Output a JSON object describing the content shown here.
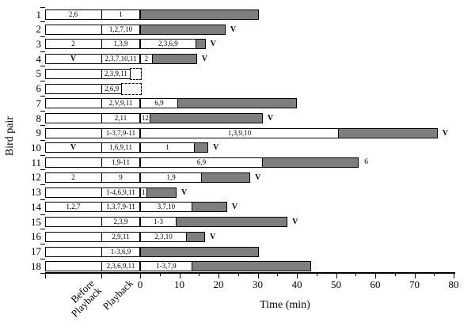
{
  "figure": {
    "y_axis_label": "Bird pair",
    "x_axis_label": "Time (min)",
    "column_headers": {
      "before": "Before\nPlayback",
      "playback": "Playback"
    }
  },
  "colors": {
    "bar_gray": "#7e7e7e",
    "bar_white": "#ffffff",
    "line": "#000000"
  },
  "chart_data": {
    "type": "bar",
    "orientation": "horizontal",
    "xlabel": "Time (min)",
    "ylabel": "Bird pair",
    "x_ticks": [
      0,
      10,
      20,
      30,
      40,
      50,
      60,
      70,
      80
    ],
    "x_tick_labels": [
      "0",
      "10",
      "20",
      "30",
      "40",
      "50",
      "60",
      "70",
      "80"
    ],
    "x_minor_step": 5,
    "xlim": [
      0,
      80
    ],
    "rows": [
      {
        "pair": "1",
        "before": "2,6",
        "playback": "1",
        "playback_end": 0,
        "dashed": false,
        "white_end": 0,
        "white_label": "",
        "gray_end": 30.3,
        "marker": ""
      },
      {
        "pair": "2",
        "before": "",
        "playback": "1,2,7,10",
        "playback_end": 0,
        "dashed": false,
        "white_end": 0,
        "white_label": "",
        "gray_end": 21.8,
        "marker": "V"
      },
      {
        "pair": "3",
        "before": "2",
        "playback": "1,3,9",
        "playback_end": 0,
        "dashed": false,
        "white_end": 14.3,
        "white_label": "2,3,6,9",
        "gray_end": 16.7,
        "marker": "V"
      },
      {
        "pair": "4",
        "before": "V",
        "playback": "2,3,7,10,11",
        "playback_end": 0,
        "dashed": false,
        "white_end": 3.2,
        "white_label": "2",
        "gray_end": 14.5,
        "marker": "V"
      },
      {
        "pair": "5",
        "before": "",
        "playback": "2,3,9,11",
        "playback_end": -2.5,
        "dashed": true,
        "white_end": 0,
        "white_label": "",
        "gray_end": null,
        "marker": ""
      },
      {
        "pair": "6",
        "before": "",
        "playback": "2,6,9",
        "playback_end": -4.6,
        "dashed": true,
        "white_end": 0,
        "white_label": "",
        "gray_end": null,
        "marker": ""
      },
      {
        "pair": "7",
        "before": "",
        "playback": "2,V,9,11",
        "playback_end": 0,
        "dashed": false,
        "white_end": 9.7,
        "white_label": "6,9",
        "gray_end": 40.0,
        "marker": ""
      },
      {
        "pair": "8",
        "before": "",
        "playback": "2,11",
        "playback_end": 0,
        "dashed": false,
        "white_end": 2.6,
        "white_label": "12",
        "gray_end": 31.3,
        "marker": "V"
      },
      {
        "pair": "9",
        "before": "",
        "playback": "1-3,7,9-11",
        "playback_end": 0,
        "dashed": false,
        "white_end": 50.7,
        "white_label": "1,3,9,10",
        "gray_end": 75.9,
        "marker": "V"
      },
      {
        "pair": "10",
        "before": "V",
        "playback": "1,6,9,11",
        "playback_end": 0,
        "dashed": false,
        "white_end": 13.9,
        "white_label": "1",
        "gray_end": 17.4,
        "marker": "V"
      },
      {
        "pair": "11",
        "before": "",
        "playback": "1,9-11",
        "playback_end": 0,
        "dashed": false,
        "white_end": 31.3,
        "white_label": "6,9",
        "gray_end": 55.8,
        "marker": "6"
      },
      {
        "pair": "12",
        "before": "2",
        "playback": "9",
        "playback_end": 0,
        "dashed": false,
        "white_end": 15.8,
        "white_label": "1,9",
        "gray_end": 28.1,
        "marker": "V"
      },
      {
        "pair": "13",
        "before": "",
        "playback": "1-4,6,9,11",
        "playback_end": 0,
        "dashed": false,
        "white_end": 1.8,
        "white_label": "1",
        "gray_end": 9.3,
        "marker": "V"
      },
      {
        "pair": "14",
        "before": "1,2,7",
        "playback": "1,3,7,9-11",
        "playback_end": 0,
        "dashed": false,
        "white_end": 13.3,
        "white_label": "3,7,10",
        "gray_end": 22.2,
        "marker": "V"
      },
      {
        "pair": "15",
        "before": "",
        "playback": "2,3,9",
        "playback_end": 0,
        "dashed": false,
        "white_end": 9.3,
        "white_label": "1-3",
        "gray_end": 37.6,
        "marker": "V"
      },
      {
        "pair": "16",
        "before": "",
        "playback": "2,9,11",
        "playback_end": 0,
        "dashed": false,
        "white_end": 11.9,
        "white_label": "2,3,10",
        "gray_end": 16.6,
        "marker": "V"
      },
      {
        "pair": "17",
        "before": "",
        "playback": "1-3,6,9",
        "playback_end": 0,
        "dashed": false,
        "white_end": 0,
        "white_label": "",
        "gray_end": 30.3,
        "marker": ""
      },
      {
        "pair": "18",
        "before": "",
        "playback": "2,3,6,9,11",
        "playback_end": 0,
        "dashed": false,
        "white_end": 13.3,
        "white_label": "1-3,7,9",
        "gray_end": 43.6,
        "marker": ""
      }
    ]
  }
}
